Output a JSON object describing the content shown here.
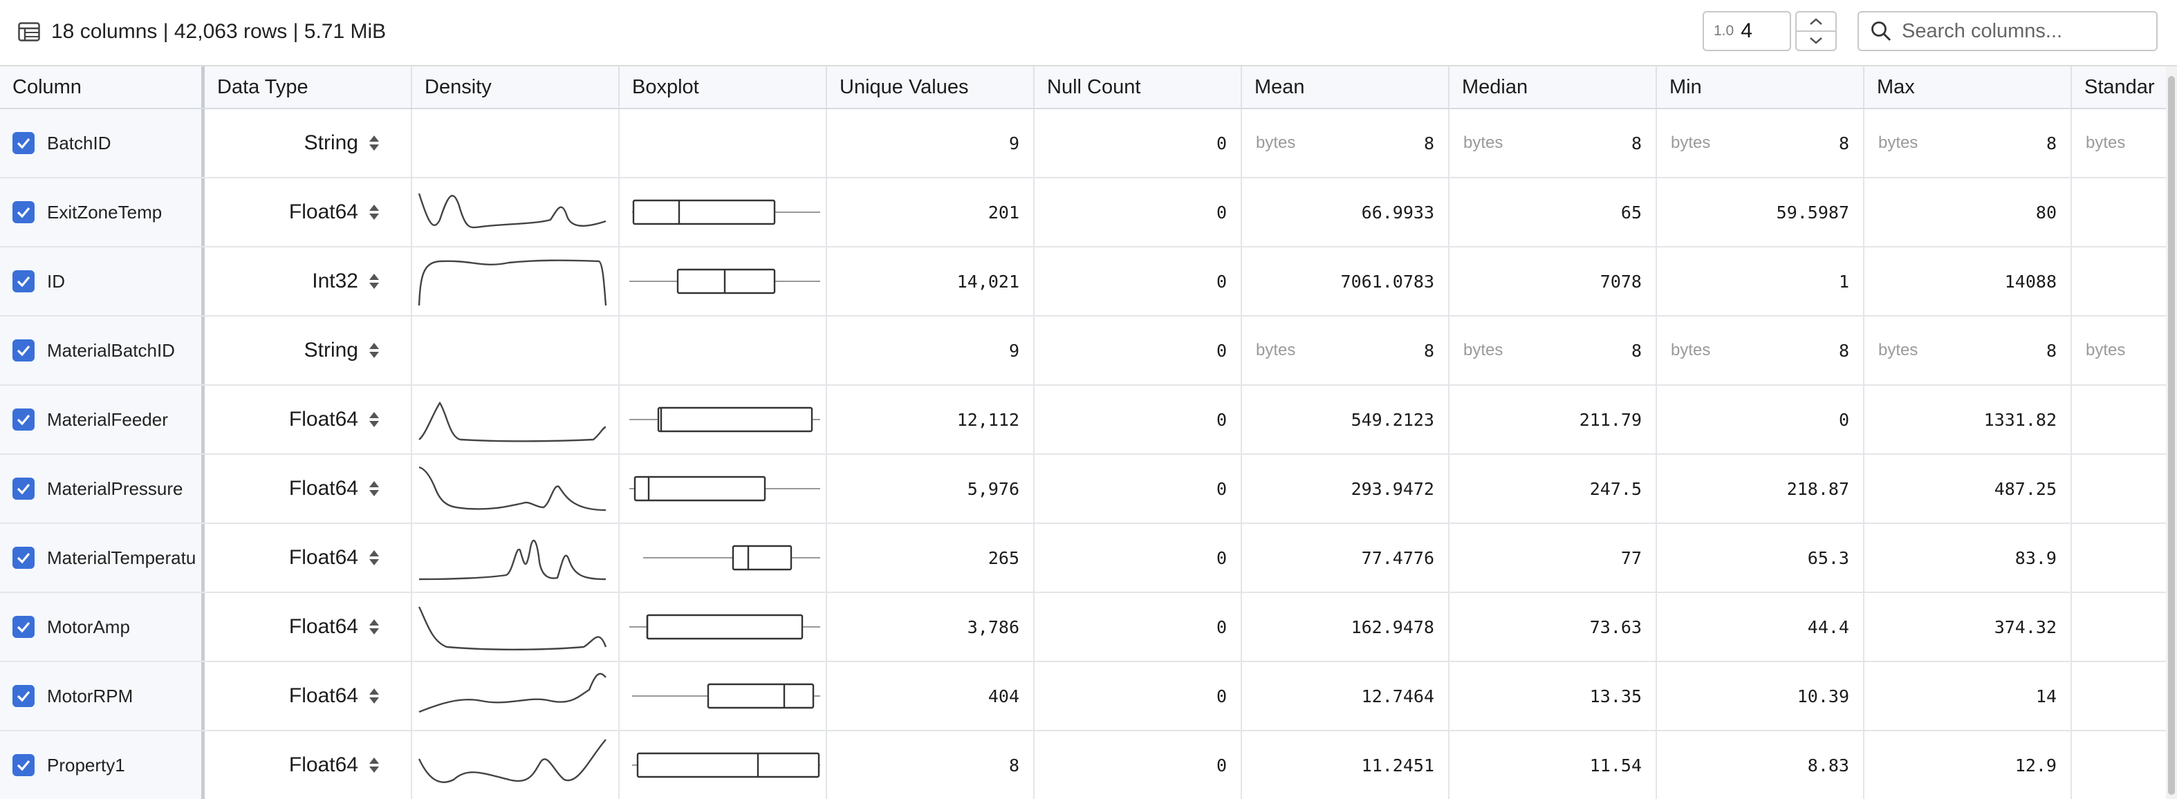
{
  "summary": {
    "text": "18 columns | 42,063 rows | 5.71 MiB"
  },
  "precision": {
    "badge": "1.0",
    "value": "4"
  },
  "search": {
    "placeholder": "Search columns..."
  },
  "headers": {
    "column": "Column",
    "data_type": "Data Type",
    "density": "Density",
    "boxplot": "Boxplot",
    "unique": "Unique Values",
    "nulls": "Null Count",
    "mean": "Mean",
    "median": "Median",
    "min": "Min",
    "max": "Max",
    "std": "Standar"
  },
  "bytes_label": "bytes",
  "accent_color": "#3a6fd8",
  "rows": [
    {
      "name": "BatchID",
      "type": "String",
      "unique": "9",
      "nulls": "0",
      "mean": "8",
      "median": "8",
      "min": "8",
      "max": "8",
      "is_bytes": true
    },
    {
      "name": "ExitZoneTemp",
      "type": "Float64",
      "unique": "201",
      "nulls": "0",
      "mean": "66.9933",
      "median": "65",
      "min": "59.5987",
      "max": "80",
      "is_bytes": false
    },
    {
      "name": "ID",
      "type": "Int32",
      "unique": "14,021",
      "nulls": "0",
      "mean": "7061.0783",
      "median": "7078",
      "min": "1",
      "max": "14088",
      "is_bytes": false
    },
    {
      "name": "MaterialBatchID",
      "type": "String",
      "unique": "9",
      "nulls": "0",
      "mean": "8",
      "median": "8",
      "min": "8",
      "max": "8",
      "is_bytes": true
    },
    {
      "name": "MaterialFeeder",
      "type": "Float64",
      "unique": "12,112",
      "nulls": "0",
      "mean": "549.2123",
      "median": "211.79",
      "min": "0",
      "max": "1331.82",
      "is_bytes": false
    },
    {
      "name": "MaterialPressure",
      "type": "Float64",
      "unique": "5,976",
      "nulls": "0",
      "mean": "293.9472",
      "median": "247.5",
      "min": "218.87",
      "max": "487.25",
      "is_bytes": false
    },
    {
      "name": "MaterialTemperatu",
      "type": "Float64",
      "unique": "265",
      "nulls": "0",
      "mean": "77.4776",
      "median": "77",
      "min": "65.3",
      "max": "83.9",
      "is_bytes": false
    },
    {
      "name": "MotorAmp",
      "type": "Float64",
      "unique": "3,786",
      "nulls": "0",
      "mean": "162.9478",
      "median": "73.63",
      "min": "44.4",
      "max": "374.32",
      "is_bytes": false
    },
    {
      "name": "MotorRPM",
      "type": "Float64",
      "unique": "404",
      "nulls": "0",
      "mean": "12.7464",
      "median": "13.35",
      "min": "10.39",
      "max": "14",
      "is_bytes": false
    },
    {
      "name": "Property1",
      "type": "Float64",
      "unique": "8",
      "nulls": "0",
      "mean": "11.2451",
      "median": "11.54",
      "min": "8.83",
      "max": "12.9",
      "is_bytes": false
    }
  ]
}
